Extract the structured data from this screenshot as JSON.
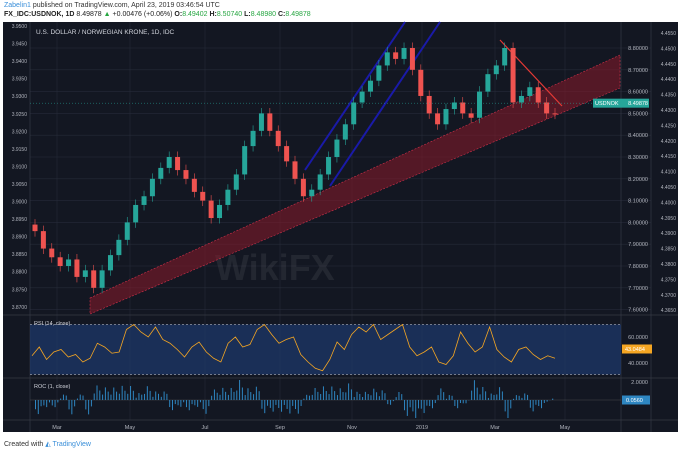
{
  "header": {
    "user": "Zabelin1",
    "published": "published on TradingView.com, April 23, 2019 03:46:54 UTC",
    "symbol": "FX_IDC:USDNOK, 1D",
    "last": "8.49878",
    "change": "+0.00476 (+0.06%)",
    "o_label": "O:",
    "o": "8.49402",
    "h_label": "H:",
    "h": "8.50740",
    "l_label": "L:",
    "l": "8.48980",
    "c_label": "C:",
    "c": "8.49878"
  },
  "footer": {
    "created_with": "Created with",
    "brand": "TradingView"
  },
  "watermark": "WikiFX",
  "colors": {
    "background": "#131722",
    "up": "#26a69a",
    "down": "#ef5350",
    "rsi": "#f5a623",
    "roc": "#2e86c1",
    "channel_red": "#8b1a2a",
    "channel_blue": "#1a1aa8",
    "badge": "#26a69a"
  },
  "chart_data": {
    "type": "candlestick",
    "title": "U.S. DOLLAR / NORWEGIAN KRONE, 1D, IDC",
    "x_ticks": [
      "Mar",
      "May",
      "Jul",
      "Sep",
      "Nov",
      "2019",
      "Mar",
      "May"
    ],
    "y_ticks": [
      "8.80000",
      "8.70000",
      "8.60000",
      "8.50000",
      "8.40000",
      "8.30000",
      "8.20000",
      "8.10000",
      "8.00000",
      "7.90000",
      "7.80000",
      "7.70000",
      "7.60000"
    ],
    "y_tick_values": [
      8.8,
      8.7,
      8.6,
      8.5,
      8.4,
      8.3,
      8.2,
      8.1,
      8.0,
      7.9,
      7.8,
      7.7,
      7.6
    ],
    "left_axis_ticks": [
      "3.9500",
      "3.9450",
      "3.9400",
      "3.9350",
      "3.9300",
      "3.9250",
      "3.9200",
      "3.9150",
      "3.9100",
      "3.9050",
      "3.9000",
      "3.8950",
      "3.8900",
      "3.8850",
      "3.8800",
      "3.8750",
      "3.8700"
    ],
    "right_axis_ticks": [
      "4.4550",
      "4.4500",
      "4.4450",
      "4.4400",
      "4.4350",
      "4.4300",
      "4.4250",
      "4.4200",
      "4.4150",
      "4.4100",
      "4.4050",
      "4.4000",
      "4.3950",
      "4.3900",
      "4.3850",
      "4.3800",
      "4.3750",
      "4.3700",
      "4.3650"
    ],
    "ylim": [
      7.58,
      8.88
    ],
    "price_badge": {
      "label": "USDNOK",
      "value": "8.49878"
    },
    "closes": [
      7.96,
      7.88,
      7.84,
      7.8,
      7.83,
      7.75,
      7.78,
      7.7,
      7.78,
      7.85,
      7.92,
      8.0,
      8.08,
      8.12,
      8.2,
      8.25,
      8.3,
      8.24,
      8.2,
      8.14,
      8.1,
      8.02,
      8.08,
      8.15,
      8.22,
      8.35,
      8.42,
      8.5,
      8.42,
      8.35,
      8.28,
      8.2,
      8.12,
      8.15,
      8.22,
      8.3,
      8.38,
      8.45,
      8.55,
      8.6,
      8.65,
      8.72,
      8.78,
      8.75,
      8.8,
      8.7,
      8.58,
      8.5,
      8.45,
      8.52,
      8.55,
      8.5,
      8.48,
      8.6,
      8.68,
      8.72,
      8.8,
      8.55,
      8.58,
      8.62,
      8.55,
      8.5,
      8.49878
    ],
    "rsi": {
      "label": "RSI (14, close)",
      "ticks": [
        "60.0000",
        "40.0000"
      ],
      "bands": [
        70,
        30
      ],
      "last": "43.0484",
      "values": [
        45,
        52,
        42,
        48,
        50,
        44,
        46,
        40,
        43,
        55,
        52,
        47,
        48,
        66,
        70,
        64,
        60,
        68,
        58,
        55,
        50,
        44,
        52,
        56,
        48,
        43,
        40,
        55,
        60,
        52,
        54,
        66,
        70,
        62,
        55,
        58,
        60,
        46,
        40,
        35,
        33,
        42,
        56,
        50,
        62,
        68,
        64,
        70,
        58,
        62,
        66,
        70,
        52,
        45,
        48,
        52,
        40,
        38,
        45,
        64,
        55,
        48,
        52,
        68,
        50,
        44,
        40,
        50,
        52,
        46,
        42,
        45,
        43
      ]
    },
    "roc": {
      "label": "ROC (1, close)",
      "ticks": [
        "2.0000"
      ],
      "last": "0.0560"
    }
  }
}
